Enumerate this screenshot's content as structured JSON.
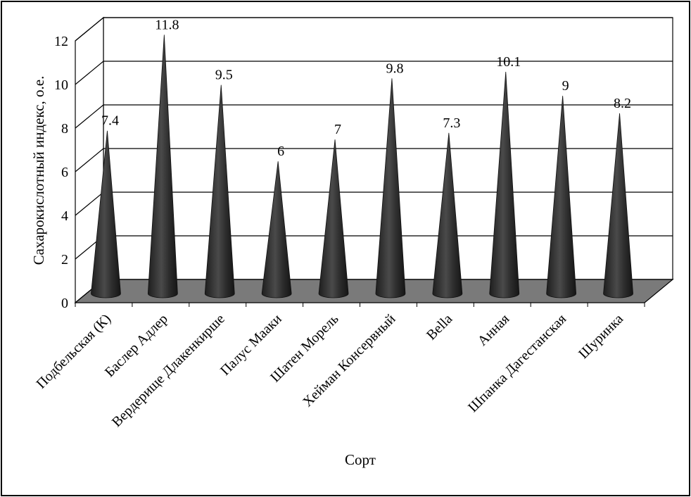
{
  "chart_data": {
    "type": "bar",
    "style": "3d-cone",
    "title": "",
    "xlabel": "Сорт",
    "ylabel": "Сахарокислотный индекс, о.е.",
    "ylim": [
      0,
      12
    ],
    "yticks": [
      0,
      2,
      4,
      6,
      8,
      10,
      12
    ],
    "grid": true,
    "legend": "none",
    "categories": [
      "Подбельская (К)",
      "Баслер Адлер",
      "Вердерище Длакенкирше",
      "Палус Мааки",
      "Шатен Морель",
      "Хейман Консервный",
      "Bella",
      "Анная",
      "Шпанка Дагестанская",
      "Шуринка"
    ],
    "values": [
      7.4,
      11.8,
      9.5,
      6,
      7,
      9.8,
      7.3,
      10.1,
      9,
      8.2
    ],
    "value_labels": [
      "7.4",
      "11.8",
      "9.5",
      "6",
      "7",
      "9.8",
      "7.3",
      "10.1",
      "9",
      "8.2"
    ]
  },
  "colors": {
    "cone": "#2f2f2f",
    "cone_highlight": "#5a5a5a",
    "floor": "#7a7a7a",
    "grid": "#000000"
  }
}
